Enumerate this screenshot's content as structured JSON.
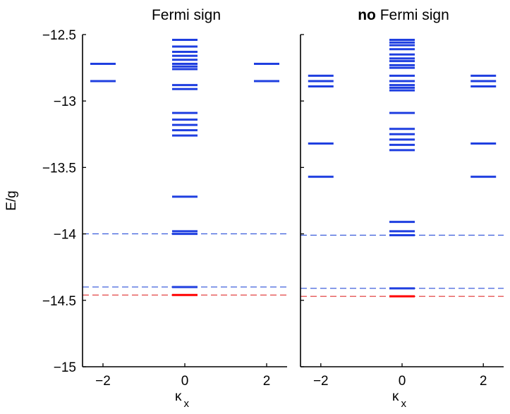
{
  "colors": {
    "level": "#1f3fe0",
    "ground_level": "#ff0000",
    "blue_dashed": "#2b4fd8",
    "red_dashed": "#e03030",
    "axis": "#000000"
  },
  "y_axis": {
    "label": "E/g",
    "ylim": [
      -15,
      -12.5
    ],
    "ticks": [
      -12.5,
      -13,
      -13.5,
      -14,
      -14.5,
      -15
    ],
    "tick_labels": [
      "−12.5",
      "−13",
      "−13.5",
      "−14",
      "−14.5",
      "−15"
    ]
  },
  "chart_data": [
    {
      "type": "scatter",
      "title": "Fermi sign",
      "title_bold_prefix": "",
      "xlabel_main": "κ",
      "xlabel_sub": "x",
      "xlim": [
        -2.5,
        2.5
      ],
      "xticks": [
        -2,
        0,
        2
      ],
      "xtick_labels": [
        "−2",
        "0",
        "2"
      ],
      "ylim": [
        -15,
        -12.5
      ],
      "levels": [
        {
          "x": -2,
          "energies": [
            -12.72,
            -12.85
          ]
        },
        {
          "x": 0,
          "energies": [
            -12.54,
            -12.59,
            -12.63,
            -12.66,
            -12.69,
            -12.72,
            -12.74,
            -12.76,
            -12.88,
            -12.91,
            -13.09,
            -13.14,
            -13.18,
            -13.22,
            -13.26,
            -13.72,
            -13.98,
            -14.0,
            -14.4
          ]
        },
        {
          "x": 2,
          "energies": [
            -12.72,
            -12.85
          ]
        }
      ],
      "ground_levels": [
        {
          "x": 0,
          "energies": [
            -14.46
          ]
        }
      ],
      "reference_lines": [
        {
          "color_key": "blue_dashed",
          "value": -14.0
        },
        {
          "color_key": "blue_dashed",
          "value": -14.4
        },
        {
          "color_key": "red_dashed",
          "value": -14.46
        }
      ]
    },
    {
      "type": "scatter",
      "title": "Fermi sign",
      "title_bold_prefix": "no",
      "xlabel_main": "κ",
      "xlabel_sub": "x",
      "xlim": [
        -2.5,
        2.5
      ],
      "xticks": [
        -2,
        0,
        2
      ],
      "xtick_labels": [
        "−2",
        "0",
        "2"
      ],
      "ylim": [
        -15,
        -12.5
      ],
      "levels": [
        {
          "x": -2,
          "energies": [
            -12.81,
            -12.85,
            -12.89,
            -13.32,
            -13.57
          ]
        },
        {
          "x": 0,
          "energies": [
            -12.54,
            -12.56,
            -12.58,
            -12.61,
            -12.65,
            -12.68,
            -12.7,
            -12.73,
            -12.75,
            -12.81,
            -12.85,
            -12.88,
            -12.9,
            -12.92,
            -13.09,
            -13.21,
            -13.25,
            -13.29,
            -13.33,
            -13.37,
            -13.91,
            -13.98,
            -14.01,
            -14.41
          ]
        },
        {
          "x": 2,
          "energies": [
            -12.81,
            -12.85,
            -12.89,
            -13.32,
            -13.57
          ]
        }
      ],
      "ground_levels": [
        {
          "x": 0,
          "energies": [
            -14.47
          ]
        }
      ],
      "reference_lines": [
        {
          "color_key": "blue_dashed",
          "value": -14.01
        },
        {
          "color_key": "blue_dashed",
          "value": -14.41
        },
        {
          "color_key": "red_dashed",
          "value": -14.47
        }
      ]
    }
  ]
}
